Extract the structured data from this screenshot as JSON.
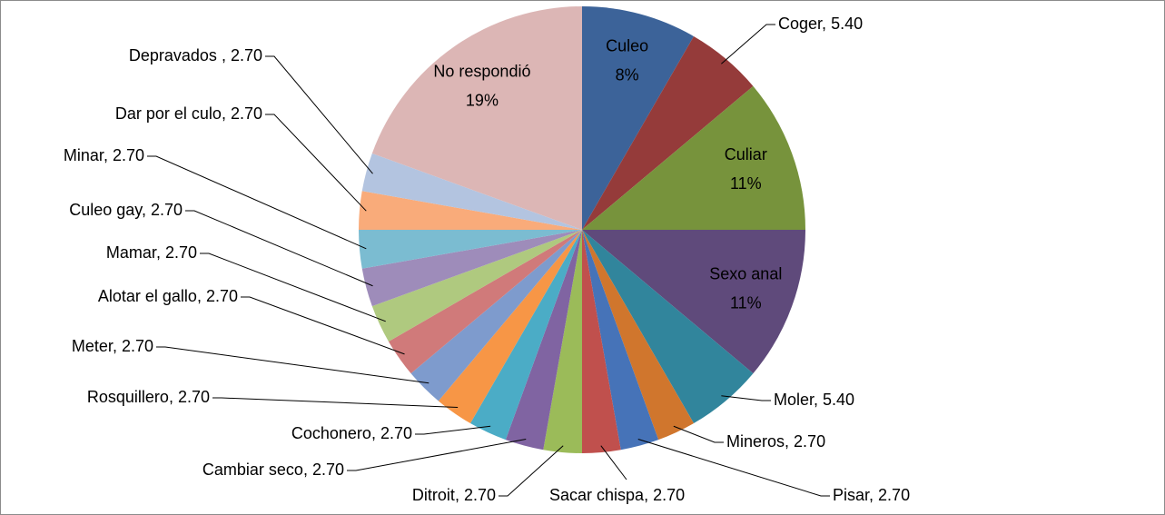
{
  "chart_data": {
    "type": "pie",
    "separator": ", ",
    "categories": [
      "Culeo",
      "Coger",
      "Culiar",
      "Sexo anal",
      "Moler",
      "Mineros",
      "Pisar",
      "Sacar chispa",
      "Ditroit",
      "Cambiar seco",
      "Cochonero",
      "Rosquillero",
      "Meter",
      "Alotar el gallo",
      "Mamar",
      "Culeo gay",
      "Minar",
      "Dar por el culo",
      "Depravados ",
      "No respondió"
    ],
    "values": [
      8.1,
      5.4,
      10.8,
      10.8,
      5.4,
      2.7,
      2.7,
      2.7,
      2.7,
      2.7,
      2.7,
      2.7,
      2.7,
      2.7,
      2.7,
      2.7,
      2.7,
      2.7,
      2.7,
      18.9
    ],
    "value_labels": [
      "8%",
      "5.40",
      "11%",
      "11%",
      "5.40",
      "2.70",
      "2.70",
      "2.70",
      "2.70",
      "2.70",
      "2.70",
      "2.70",
      "2.70",
      "2.70",
      "2.70",
      "2.70",
      "2.70",
      "2.70",
      "2.70",
      "19%"
    ],
    "colors": [
      "#3c6399",
      "#953b3a",
      "#77933c",
      "#5f4a7b",
      "#31859c",
      "#d0762d",
      "#4673b8",
      "#c0504d",
      "#9bbb59",
      "#8064a2",
      "#4bacc6",
      "#f79646",
      "#7e9bcd",
      "#d07a7a",
      "#afc97f",
      "#9e8cba",
      "#7bbcd1",
      "#f9ab7a",
      "#b3c4e0",
      "#dcb6b5"
    ]
  }
}
